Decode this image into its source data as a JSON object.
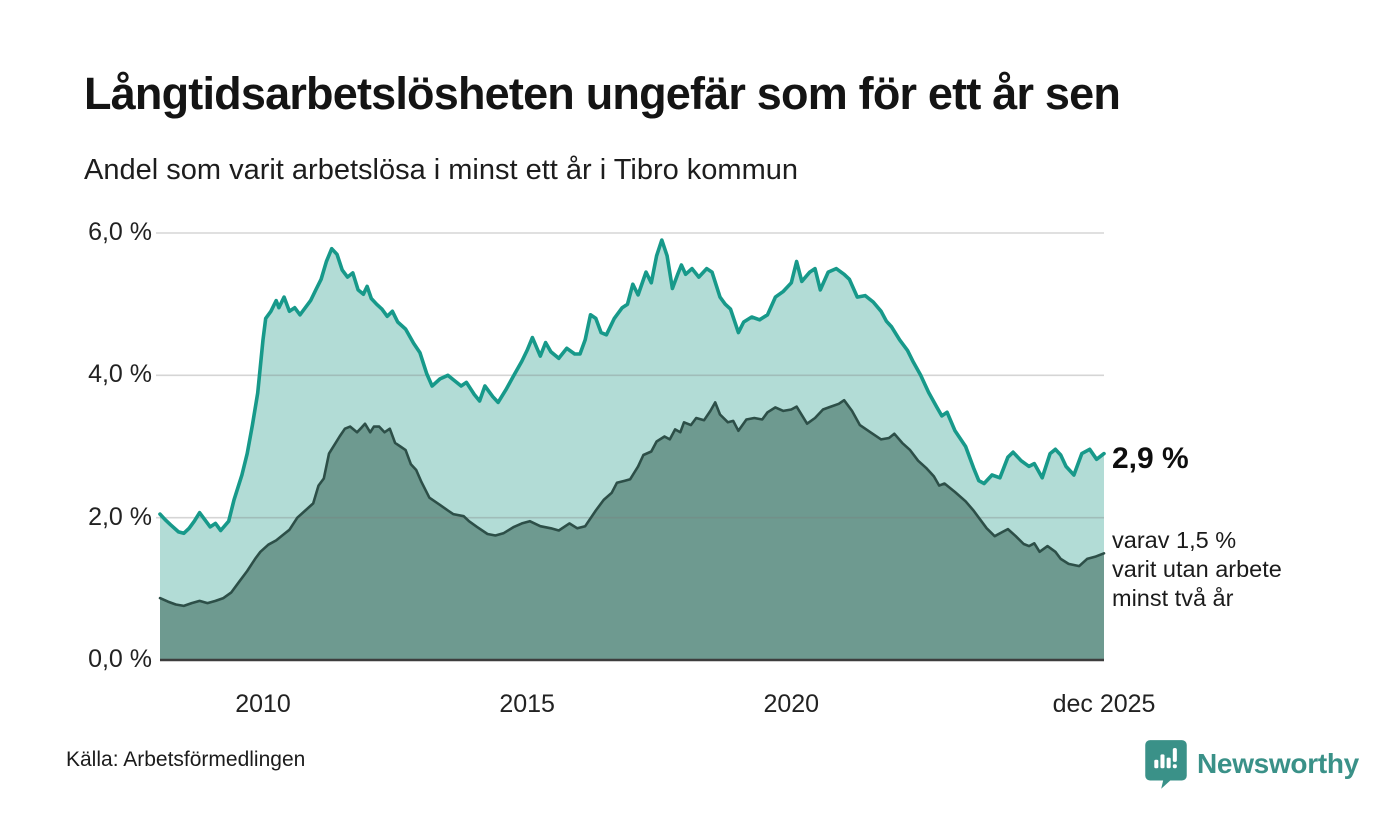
{
  "header": {
    "title": "Långtidsarbetslösheten ungefär som för ett år sen",
    "subtitle": "Andel som varit arbetslösa i minst ett år i Tibro kommun"
  },
  "annotations": {
    "end_value": "2,9 %",
    "note_lines": [
      "varav 1,5 %",
      "varit utan arbete",
      "minst två år"
    ]
  },
  "footer": {
    "source": "Källa: Arbetsförmedlingen",
    "brand": "Newsworthy"
  },
  "colors": {
    "series1_line": "#17998a",
    "series1_fill": "#b2dcd6",
    "series2_line": "#2d4f48",
    "series2_fill": "#6e9a90",
    "gridline": "rgba(125,125,125,0.32)",
    "axis_line": "#3d3d3d",
    "brand_teal": "#3a9188"
  },
  "chart_data": {
    "type": "area",
    "title": "Långtidsarbetslösheten ungefär som för ett år sen",
    "subtitle": "Andel som varit arbetslösa i minst ett år i Tibro kommun",
    "x_range": [
      2008.05,
      2025.92
    ],
    "ylim": [
      0,
      6.0
    ],
    "grid": true,
    "legend": "none",
    "y_ticks": [
      {
        "label": "6,0 %",
        "value": 6.0
      },
      {
        "label": "4,0 %",
        "value": 4.0
      },
      {
        "label": "2,0 %",
        "value": 2.0
      },
      {
        "label": "0,0 %",
        "value": 0.0
      }
    ],
    "x_ticks": [
      {
        "label": "2010",
        "year": 2010.0
      },
      {
        "label": "2015",
        "year": 2015.0
      },
      {
        "label": "2020",
        "year": 2020.0
      },
      {
        "label": "dec 2025",
        "year": 2025.92
      }
    ],
    "series": [
      {
        "name": "Arbetslösa minst ett år",
        "end_label": "2,9 %",
        "line_color": "#17998a",
        "fill_color": "#b2dcd6",
        "points": [
          [
            2008.05,
            2.05
          ],
          [
            2008.15,
            1.97
          ],
          [
            2008.25,
            1.9
          ],
          [
            2008.4,
            1.8
          ],
          [
            2008.5,
            1.78
          ],
          [
            2008.6,
            1.85
          ],
          [
            2008.7,
            1.95
          ],
          [
            2008.8,
            2.07
          ],
          [
            2008.9,
            1.97
          ],
          [
            2009.0,
            1.87
          ],
          [
            2009.1,
            1.92
          ],
          [
            2009.2,
            1.82
          ],
          [
            2009.35,
            1.95
          ],
          [
            2009.45,
            2.25
          ],
          [
            2009.6,
            2.6
          ],
          [
            2009.7,
            2.9
          ],
          [
            2009.8,
            3.3
          ],
          [
            2009.9,
            3.75
          ],
          [
            2010.0,
            4.5
          ],
          [
            2010.05,
            4.8
          ],
          [
            2010.15,
            4.9
          ],
          [
            2010.25,
            5.05
          ],
          [
            2010.3,
            4.95
          ],
          [
            2010.4,
            5.1
          ],
          [
            2010.5,
            4.9
          ],
          [
            2010.6,
            4.95
          ],
          [
            2010.7,
            4.85
          ],
          [
            2010.8,
            4.95
          ],
          [
            2010.9,
            5.05
          ],
          [
            2011.0,
            5.2
          ],
          [
            2011.1,
            5.35
          ],
          [
            2011.2,
            5.6
          ],
          [
            2011.3,
            5.78
          ],
          [
            2011.4,
            5.7
          ],
          [
            2011.5,
            5.48
          ],
          [
            2011.6,
            5.38
          ],
          [
            2011.7,
            5.44
          ],
          [
            2011.8,
            5.2
          ],
          [
            2011.9,
            5.14
          ],
          [
            2011.97,
            5.25
          ],
          [
            2012.05,
            5.08
          ],
          [
            2012.15,
            5.0
          ],
          [
            2012.25,
            4.93
          ],
          [
            2012.35,
            4.83
          ],
          [
            2012.45,
            4.9
          ],
          [
            2012.55,
            4.75
          ],
          [
            2012.7,
            4.65
          ],
          [
            2012.85,
            4.45
          ],
          [
            2012.97,
            4.32
          ],
          [
            2013.1,
            4.02
          ],
          [
            2013.2,
            3.85
          ],
          [
            2013.35,
            3.95
          ],
          [
            2013.5,
            4.0
          ],
          [
            2013.6,
            3.94
          ],
          [
            2013.75,
            3.85
          ],
          [
            2013.85,
            3.9
          ],
          [
            2014.0,
            3.73
          ],
          [
            2014.1,
            3.64
          ],
          [
            2014.2,
            3.85
          ],
          [
            2014.35,
            3.7
          ],
          [
            2014.45,
            3.62
          ],
          [
            2014.6,
            3.8
          ],
          [
            2014.75,
            4.0
          ],
          [
            2014.9,
            4.2
          ],
          [
            2015.0,
            4.35
          ],
          [
            2015.1,
            4.53
          ],
          [
            2015.25,
            4.27
          ],
          [
            2015.35,
            4.46
          ],
          [
            2015.45,
            4.33
          ],
          [
            2015.6,
            4.24
          ],
          [
            2015.75,
            4.38
          ],
          [
            2015.9,
            4.3
          ],
          [
            2016.0,
            4.3
          ],
          [
            2016.1,
            4.5
          ],
          [
            2016.2,
            4.85
          ],
          [
            2016.3,
            4.8
          ],
          [
            2016.4,
            4.6
          ],
          [
            2016.5,
            4.57
          ],
          [
            2016.65,
            4.8
          ],
          [
            2016.8,
            4.95
          ],
          [
            2016.9,
            5.0
          ],
          [
            2017.0,
            5.28
          ],
          [
            2017.1,
            5.13
          ],
          [
            2017.25,
            5.45
          ],
          [
            2017.35,
            5.3
          ],
          [
            2017.45,
            5.68
          ],
          [
            2017.55,
            5.9
          ],
          [
            2017.65,
            5.68
          ],
          [
            2017.75,
            5.22
          ],
          [
            2017.85,
            5.42
          ],
          [
            2017.92,
            5.55
          ],
          [
            2018.0,
            5.42
          ],
          [
            2018.12,
            5.5
          ],
          [
            2018.25,
            5.38
          ],
          [
            2018.4,
            5.5
          ],
          [
            2018.5,
            5.45
          ],
          [
            2018.65,
            5.1
          ],
          [
            2018.75,
            5.0
          ],
          [
            2018.85,
            4.93
          ],
          [
            2019.0,
            4.6
          ],
          [
            2019.1,
            4.75
          ],
          [
            2019.25,
            4.82
          ],
          [
            2019.4,
            4.78
          ],
          [
            2019.55,
            4.85
          ],
          [
            2019.7,
            5.1
          ],
          [
            2019.85,
            5.18
          ],
          [
            2020.0,
            5.3
          ],
          [
            2020.1,
            5.6
          ],
          [
            2020.2,
            5.32
          ],
          [
            2020.35,
            5.45
          ],
          [
            2020.45,
            5.5
          ],
          [
            2020.55,
            5.2
          ],
          [
            2020.7,
            5.45
          ],
          [
            2020.85,
            5.5
          ],
          [
            2021.0,
            5.42
          ],
          [
            2021.1,
            5.35
          ],
          [
            2021.25,
            5.1
          ],
          [
            2021.4,
            5.12
          ],
          [
            2021.55,
            5.03
          ],
          [
            2021.7,
            4.9
          ],
          [
            2021.8,
            4.76
          ],
          [
            2021.9,
            4.68
          ],
          [
            2022.05,
            4.5
          ],
          [
            2022.2,
            4.35
          ],
          [
            2022.3,
            4.2
          ],
          [
            2022.45,
            4.0
          ],
          [
            2022.6,
            3.76
          ],
          [
            2022.75,
            3.56
          ],
          [
            2022.85,
            3.43
          ],
          [
            2022.95,
            3.48
          ],
          [
            2023.1,
            3.22
          ],
          [
            2023.3,
            3.0
          ],
          [
            2023.45,
            2.7
          ],
          [
            2023.55,
            2.52
          ],
          [
            2023.65,
            2.48
          ],
          [
            2023.8,
            2.6
          ],
          [
            2023.95,
            2.56
          ],
          [
            2024.1,
            2.85
          ],
          [
            2024.2,
            2.92
          ],
          [
            2024.35,
            2.8
          ],
          [
            2024.5,
            2.72
          ],
          [
            2024.6,
            2.76
          ],
          [
            2024.75,
            2.56
          ],
          [
            2024.9,
            2.9
          ],
          [
            2025.0,
            2.96
          ],
          [
            2025.1,
            2.88
          ],
          [
            2025.2,
            2.72
          ],
          [
            2025.35,
            2.6
          ],
          [
            2025.5,
            2.9
          ],
          [
            2025.65,
            2.96
          ],
          [
            2025.78,
            2.82
          ],
          [
            2025.92,
            2.9
          ]
        ]
      },
      {
        "name": "Arbetslösa minst två år",
        "end_label": "1,5 %",
        "line_color": "#2d4f48",
        "fill_color": "#6e9a90",
        "points": [
          [
            2008.05,
            0.87
          ],
          [
            2008.2,
            0.82
          ],
          [
            2008.35,
            0.78
          ],
          [
            2008.5,
            0.76
          ],
          [
            2008.65,
            0.8
          ],
          [
            2008.8,
            0.83
          ],
          [
            2008.95,
            0.8
          ],
          [
            2009.1,
            0.83
          ],
          [
            2009.25,
            0.87
          ],
          [
            2009.4,
            0.95
          ],
          [
            2009.55,
            1.1
          ],
          [
            2009.7,
            1.25
          ],
          [
            2009.85,
            1.42
          ],
          [
            2009.95,
            1.52
          ],
          [
            2010.1,
            1.62
          ],
          [
            2010.25,
            1.68
          ],
          [
            2010.4,
            1.77
          ],
          [
            2010.5,
            1.83
          ],
          [
            2010.65,
            2.0
          ],
          [
            2010.8,
            2.1
          ],
          [
            2010.95,
            2.2
          ],
          [
            2011.05,
            2.45
          ],
          [
            2011.15,
            2.55
          ],
          [
            2011.25,
            2.9
          ],
          [
            2011.35,
            3.02
          ],
          [
            2011.45,
            3.14
          ],
          [
            2011.55,
            3.25
          ],
          [
            2011.65,
            3.28
          ],
          [
            2011.78,
            3.2
          ],
          [
            2011.87,
            3.27
          ],
          [
            2011.93,
            3.32
          ],
          [
            2012.03,
            3.2
          ],
          [
            2012.1,
            3.28
          ],
          [
            2012.2,
            3.28
          ],
          [
            2012.3,
            3.2
          ],
          [
            2012.4,
            3.25
          ],
          [
            2012.5,
            3.05
          ],
          [
            2012.6,
            3.0
          ],
          [
            2012.7,
            2.95
          ],
          [
            2012.8,
            2.75
          ],
          [
            2012.9,
            2.67
          ],
          [
            2013.0,
            2.5
          ],
          [
            2013.15,
            2.28
          ],
          [
            2013.35,
            2.18
          ],
          [
            2013.5,
            2.1
          ],
          [
            2013.6,
            2.05
          ],
          [
            2013.8,
            2.02
          ],
          [
            2013.9,
            1.95
          ],
          [
            2014.05,
            1.87
          ],
          [
            2014.25,
            1.77
          ],
          [
            2014.4,
            1.75
          ],
          [
            2014.55,
            1.78
          ],
          [
            2014.75,
            1.87
          ],
          [
            2014.9,
            1.92
          ],
          [
            2015.05,
            1.95
          ],
          [
            2015.25,
            1.88
          ],
          [
            2015.45,
            1.85
          ],
          [
            2015.6,
            1.82
          ],
          [
            2015.8,
            1.92
          ],
          [
            2015.95,
            1.85
          ],
          [
            2016.1,
            1.88
          ],
          [
            2016.3,
            2.1
          ],
          [
            2016.45,
            2.25
          ],
          [
            2016.6,
            2.35
          ],
          [
            2016.7,
            2.49
          ],
          [
            2016.85,
            2.52
          ],
          [
            2016.95,
            2.54
          ],
          [
            2017.1,
            2.72
          ],
          [
            2017.2,
            2.88
          ],
          [
            2017.35,
            2.93
          ],
          [
            2017.45,
            3.07
          ],
          [
            2017.6,
            3.14
          ],
          [
            2017.7,
            3.1
          ],
          [
            2017.8,
            3.24
          ],
          [
            2017.9,
            3.2
          ],
          [
            2017.97,
            3.34
          ],
          [
            2018.1,
            3.3
          ],
          [
            2018.2,
            3.4
          ],
          [
            2018.35,
            3.37
          ],
          [
            2018.47,
            3.5
          ],
          [
            2018.56,
            3.62
          ],
          [
            2018.65,
            3.45
          ],
          [
            2018.8,
            3.34
          ],
          [
            2018.9,
            3.36
          ],
          [
            2019.0,
            3.22
          ],
          [
            2019.15,
            3.38
          ],
          [
            2019.3,
            3.4
          ],
          [
            2019.45,
            3.38
          ],
          [
            2019.55,
            3.48
          ],
          [
            2019.7,
            3.55
          ],
          [
            2019.85,
            3.5
          ],
          [
            2020.0,
            3.52
          ],
          [
            2020.1,
            3.56
          ],
          [
            2020.3,
            3.32
          ],
          [
            2020.45,
            3.4
          ],
          [
            2020.6,
            3.52
          ],
          [
            2020.75,
            3.56
          ],
          [
            2020.9,
            3.6
          ],
          [
            2021.0,
            3.65
          ],
          [
            2021.15,
            3.5
          ],
          [
            2021.3,
            3.3
          ],
          [
            2021.5,
            3.2
          ],
          [
            2021.7,
            3.1
          ],
          [
            2021.85,
            3.12
          ],
          [
            2021.95,
            3.18
          ],
          [
            2022.1,
            3.05
          ],
          [
            2022.25,
            2.95
          ],
          [
            2022.4,
            2.8
          ],
          [
            2022.55,
            2.7
          ],
          [
            2022.7,
            2.58
          ],
          [
            2022.8,
            2.45
          ],
          [
            2022.9,
            2.48
          ],
          [
            2023.1,
            2.36
          ],
          [
            2023.3,
            2.23
          ],
          [
            2023.45,
            2.1
          ],
          [
            2023.55,
            2.0
          ],
          [
            2023.7,
            1.85
          ],
          [
            2023.85,
            1.74
          ],
          [
            2024.0,
            1.8
          ],
          [
            2024.1,
            1.84
          ],
          [
            2024.25,
            1.74
          ],
          [
            2024.4,
            1.63
          ],
          [
            2024.5,
            1.6
          ],
          [
            2024.6,
            1.64
          ],
          [
            2024.7,
            1.52
          ],
          [
            2024.85,
            1.6
          ],
          [
            2025.0,
            1.52
          ],
          [
            2025.1,
            1.42
          ],
          [
            2025.25,
            1.35
          ],
          [
            2025.45,
            1.32
          ],
          [
            2025.6,
            1.42
          ],
          [
            2025.75,
            1.45
          ],
          [
            2025.92,
            1.5
          ]
        ]
      }
    ]
  }
}
